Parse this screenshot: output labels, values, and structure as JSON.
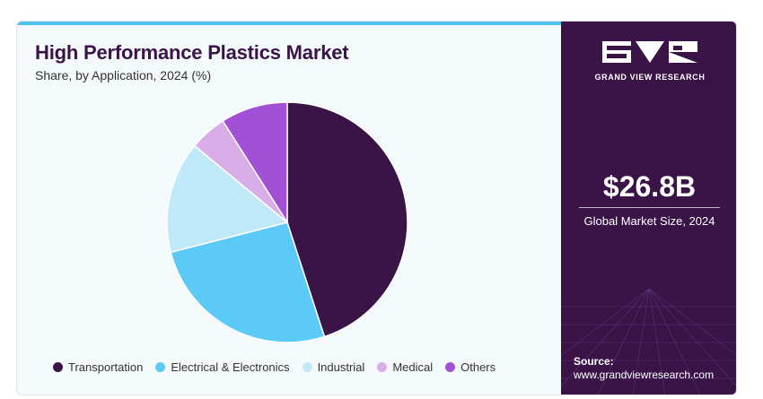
{
  "header": {
    "title": "High Performance Plastics Market",
    "subtitle": "Share, by Application, 2024 (%)"
  },
  "chart_data": {
    "type": "pie",
    "title": "High Performance Plastics Market",
    "subtitle": "Share, by Application, 2024 (%)",
    "categories": [
      "Transportation",
      "Electrical & Electronics",
      "Industrial",
      "Medical",
      "Others"
    ],
    "values": [
      45,
      26,
      15,
      5,
      9
    ],
    "colors": [
      "#3a1447",
      "#5ccaf6",
      "#bfe8f9",
      "#d9aee8",
      "#a251d6"
    ],
    "legend_position": "bottom"
  },
  "sidebar": {
    "brand": "GRAND VIEW RESEARCH",
    "market_size_value": "$26.8B",
    "market_size_label": "Global Market Size, 2024",
    "source_label": "Source:",
    "source_url": "www.grandviewresearch.com"
  }
}
